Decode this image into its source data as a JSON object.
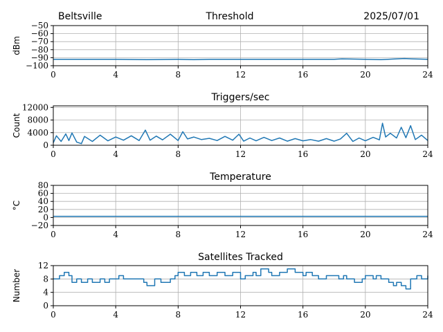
{
  "header": {
    "station": "Beltsville",
    "title": "Threshold",
    "date": "2025/07/01"
  },
  "colors": {
    "line": "#1f77b4",
    "grid": "#b0b0b0"
  },
  "chart_data": [
    {
      "type": "line",
      "title": "",
      "ylabel": "dBm",
      "xlim": [
        0,
        24
      ],
      "xticks": [
        0,
        4,
        8,
        12,
        16,
        20,
        24
      ],
      "ylim": [
        -100,
        -50
      ],
      "yticks": [
        -100,
        -90,
        -80,
        -70,
        -60,
        -50
      ],
      "ytick_labels": [
        "−100",
        "−90",
        "−80",
        "−70",
        "−60",
        "−50"
      ],
      "grid": true,
      "x": [
        0,
        2,
        4,
        6,
        8,
        9,
        10,
        12,
        14,
        16,
        18,
        18.5,
        20,
        21,
        22,
        22.5,
        23,
        24
      ],
      "y": [
        -92,
        -92,
        -92,
        -92.5,
        -92,
        -92.5,
        -92,
        -92,
        -92,
        -92,
        -92,
        -91.5,
        -92,
        -92.5,
        -91.5,
        -91,
        -91.5,
        -92
      ]
    },
    {
      "type": "line",
      "title": "Triggers/sec",
      "ylabel": "Count",
      "xlim": [
        0,
        24
      ],
      "xticks": [
        0,
        4,
        8,
        12,
        16,
        20,
        24
      ],
      "ylim": [
        0,
        12500
      ],
      "yticks": [
        0,
        4000,
        8000,
        12000
      ],
      "ytick_labels": [
        "0",
        "4000",
        "8000",
        "12000"
      ],
      "grid": true,
      "x": [
        0,
        0.2,
        0.5,
        0.8,
        1.0,
        1.2,
        1.5,
        1.8,
        2.0,
        2.5,
        3.0,
        3.5,
        4.0,
        4.5,
        5.0,
        5.5,
        5.9,
        6.2,
        6.6,
        7.0,
        7.5,
        8.0,
        8.3,
        8.6,
        9.0,
        9.5,
        10.0,
        10.5,
        11.0,
        11.5,
        11.9,
        12.2,
        12.6,
        13.0,
        13.5,
        14.0,
        14.5,
        15.0,
        15.5,
        16.0,
        16.5,
        17.0,
        17.5,
        18.0,
        18.4,
        18.8,
        19.2,
        19.6,
        20.0,
        20.5,
        20.9,
        21.1,
        21.3,
        21.6,
        22.0,
        22.3,
        22.6,
        22.9,
        23.2,
        23.6,
        24.0
      ],
      "y": [
        800,
        3000,
        1200,
        3600,
        1500,
        3900,
        1000,
        500,
        2800,
        1200,
        3200,
        1400,
        2600,
        1600,
        3000,
        1500,
        4800,
        1600,
        2900,
        1700,
        3500,
        1500,
        4300,
        2000,
        2600,
        1800,
        2200,
        1500,
        2800,
        1600,
        3500,
        1300,
        2300,
        1400,
        2500,
        1500,
        2300,
        1300,
        2100,
        1400,
        1800,
        1300,
        2100,
        1300,
        2000,
        3800,
        1200,
        2300,
        1400,
        2500,
        1700,
        7000,
        2600,
        3800,
        2300,
        5700,
        2400,
        6200,
        1800,
        3200,
        1500
      ]
    },
    {
      "type": "line",
      "title": "Temperature",
      "ylabel": "°C",
      "xlim": [
        0,
        24
      ],
      "xticks": [
        0,
        4,
        8,
        12,
        16,
        20,
        24
      ],
      "ylim": [
        -20,
        80
      ],
      "yticks": [
        -20,
        0,
        20,
        40,
        60,
        80
      ],
      "ytick_labels": [
        "−20",
        "0",
        "20",
        "40",
        "60",
        "80"
      ],
      "grid": true,
      "x": [
        0,
        6,
        12,
        18,
        24
      ],
      "y": [
        3,
        3,
        3,
        3,
        3
      ]
    },
    {
      "type": "line",
      "title": "Satellites Tracked",
      "ylabel": "Number",
      "xlim": [
        0,
        24
      ],
      "xticks": [
        0,
        4,
        8,
        12,
        16,
        20,
        24
      ],
      "ylim": [
        0,
        12
      ],
      "yticks": [
        0,
        4,
        8,
        12
      ],
      "ytick_labels": [
        "0",
        "4",
        "8",
        "12"
      ],
      "grid": true,
      "step": true,
      "x": [
        0,
        0.4,
        0.7,
        1.0,
        1.2,
        1.5,
        1.8,
        2.2,
        2.5,
        3.0,
        3.3,
        3.6,
        4.2,
        4.5,
        5.8,
        6.0,
        6.5,
        6.9,
        7.5,
        7.8,
        8.0,
        8.4,
        8.8,
        9.2,
        9.6,
        10.0,
        10.5,
        11.0,
        11.5,
        12.0,
        12.3,
        12.8,
        13.0,
        13.3,
        13.8,
        14.0,
        14.5,
        15.0,
        15.5,
        16.0,
        16.2,
        16.6,
        17.0,
        17.5,
        18.0,
        18.3,
        18.6,
        18.8,
        19.3,
        19.8,
        20.0,
        20.5,
        20.7,
        21.0,
        21.5,
        21.8,
        22.0,
        22.3,
        22.6,
        22.9,
        23.3,
        23.6,
        24.0
      ],
      "y": [
        8,
        9,
        10,
        9,
        7,
        8,
        7,
        8,
        7,
        8,
        7,
        8,
        9,
        8,
        7,
        6,
        8,
        7,
        8,
        9,
        10,
        9,
        10,
        9,
        10,
        9,
        10,
        9,
        10,
        8,
        9,
        10,
        9,
        11,
        10,
        9,
        10,
        11,
        10,
        9,
        10,
        9,
        8,
        9,
        9,
        8,
        9,
        8,
        7,
        8,
        9,
        8,
        9,
        8,
        7,
        6,
        7,
        6,
        5,
        8,
        9,
        8,
        9
      ]
    }
  ]
}
